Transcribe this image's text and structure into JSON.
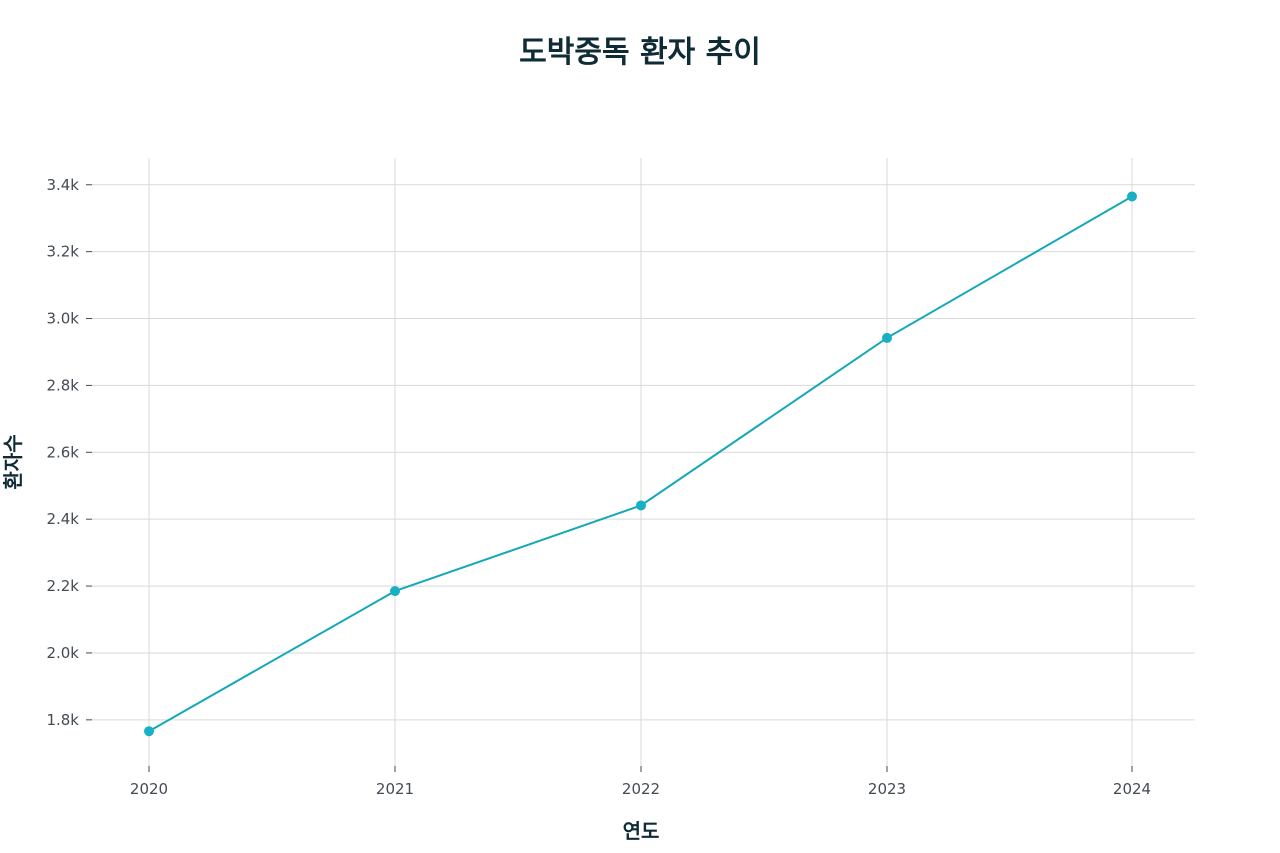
{
  "chart_data": {
    "type": "line",
    "title": "도박중독 환자 추이",
    "xlabel": "연도",
    "ylabel": "환자수",
    "x": [
      "2020",
      "2021",
      "2022",
      "2023",
      "2024"
    ],
    "series": [
      {
        "values": [
          1766,
          2185,
          2441,
          2942,
          3365
        ]
      }
    ],
    "ylim": [
      1650,
      3480
    ],
    "yticks": [
      1800,
      2000,
      2200,
      2400,
      2600,
      2800,
      3000,
      3200,
      3400
    ],
    "ytick_labels": [
      "1.8k",
      "2.0k",
      "2.2k",
      "2.4k",
      "2.6k",
      "2.8k",
      "3.0k",
      "3.2k",
      "3.4k"
    ],
    "grid": true,
    "legend": "none",
    "colors": {
      "line": "#14a8b9",
      "marker": "#1ab0c4"
    }
  }
}
